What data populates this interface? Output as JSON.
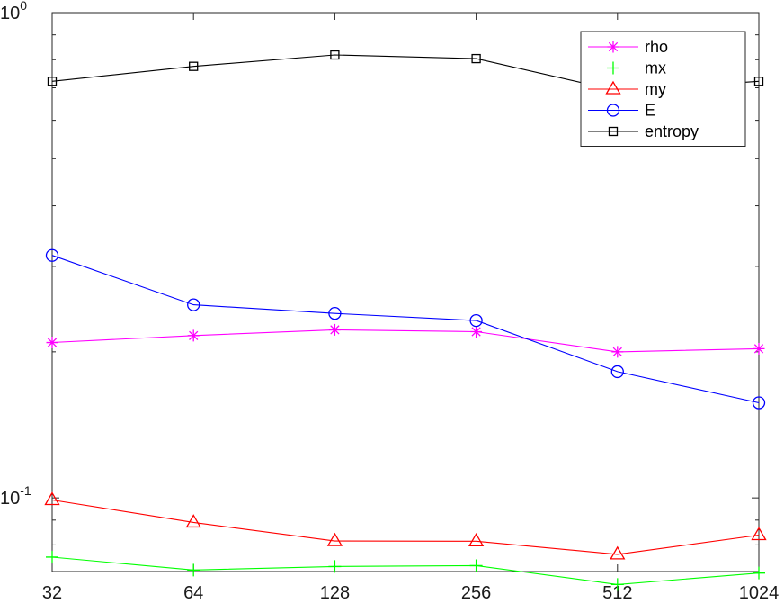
{
  "chart_data": {
    "type": "line",
    "x_scale": "log2",
    "y_scale": "log10",
    "x": [
      32,
      64,
      128,
      256,
      512,
      1024
    ],
    "x_tick_labels": [
      "32",
      "64",
      "128",
      "256",
      "512",
      "1024"
    ],
    "y_tick_labels": [
      {
        "value": 1,
        "base": "10",
        "exp": "0"
      },
      {
        "value": 0.1,
        "base": "10",
        "exp": "-1"
      }
    ],
    "ylim": [
      0.0705,
      1.0
    ],
    "grid": false,
    "legend_position": "top-right",
    "series": [
      {
        "name": "rho",
        "color": "#ff00ff",
        "marker": "asterisk",
        "values": [
          0.209,
          0.216,
          0.222,
          0.22,
          0.2,
          0.203
        ]
      },
      {
        "name": "mx",
        "color": "#00ff00",
        "marker": "plus",
        "values": [
          0.0755,
          0.071,
          0.0722,
          0.0725,
          0.0663,
          0.07
        ]
      },
      {
        "name": "my",
        "color": "#ff0000",
        "marker": "triangle",
        "values": [
          0.099,
          0.089,
          0.0815,
          0.0814,
          0.0765,
          0.0838
        ]
      },
      {
        "name": "E",
        "color": "#0000ff",
        "marker": "circle",
        "values": [
          0.316,
          0.25,
          0.24,
          0.232,
          0.182,
          0.157
        ]
      },
      {
        "name": "entropy",
        "color": "#000000",
        "marker": "square",
        "values": [
          0.722,
          0.775,
          0.818,
          0.804,
          0.69,
          0.722
        ]
      }
    ]
  }
}
